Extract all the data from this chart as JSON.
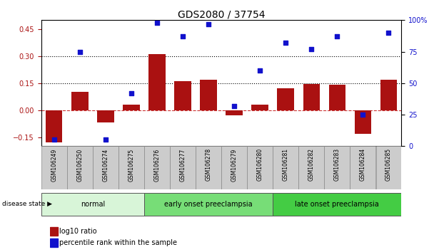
{
  "title": "GDS2080 / 37754",
  "samples": [
    "GSM106249",
    "GSM106250",
    "GSM106274",
    "GSM106275",
    "GSM106276",
    "GSM106277",
    "GSM106278",
    "GSM106279",
    "GSM106280",
    "GSM106281",
    "GSM106282",
    "GSM106283",
    "GSM106284",
    "GSM106285"
  ],
  "log10_ratio": [
    -0.18,
    0.1,
    -0.07,
    0.03,
    0.31,
    0.16,
    0.17,
    -0.03,
    0.03,
    0.12,
    0.145,
    0.14,
    -0.13,
    0.17
  ],
  "percentile_rank": [
    5,
    75,
    5,
    42,
    98,
    87,
    97,
    32,
    60,
    82,
    77,
    87,
    25,
    90
  ],
  "groups": [
    {
      "label": "normal",
      "start": 0,
      "end": 4,
      "color": "#d8f5d8"
    },
    {
      "label": "early onset preeclampsia",
      "start": 4,
      "end": 9,
      "color": "#77dd77"
    },
    {
      "label": "late onset preeclampsia",
      "start": 9,
      "end": 14,
      "color": "#44cc44"
    }
  ],
  "ylim_left": [
    -0.2,
    0.5
  ],
  "ylim_right": [
    0,
    100
  ],
  "yticks_left": [
    -0.15,
    0.0,
    0.15,
    0.3,
    0.45
  ],
  "yticks_right": [
    0,
    25,
    50,
    75,
    100
  ],
  "hlines": [
    0.15,
    0.3
  ],
  "bar_color": "#aa1111",
  "dot_color": "#1111cc",
  "zero_line_color": "#cc3333",
  "legend_items": [
    "log10 ratio",
    "percentile rank within the sample"
  ]
}
